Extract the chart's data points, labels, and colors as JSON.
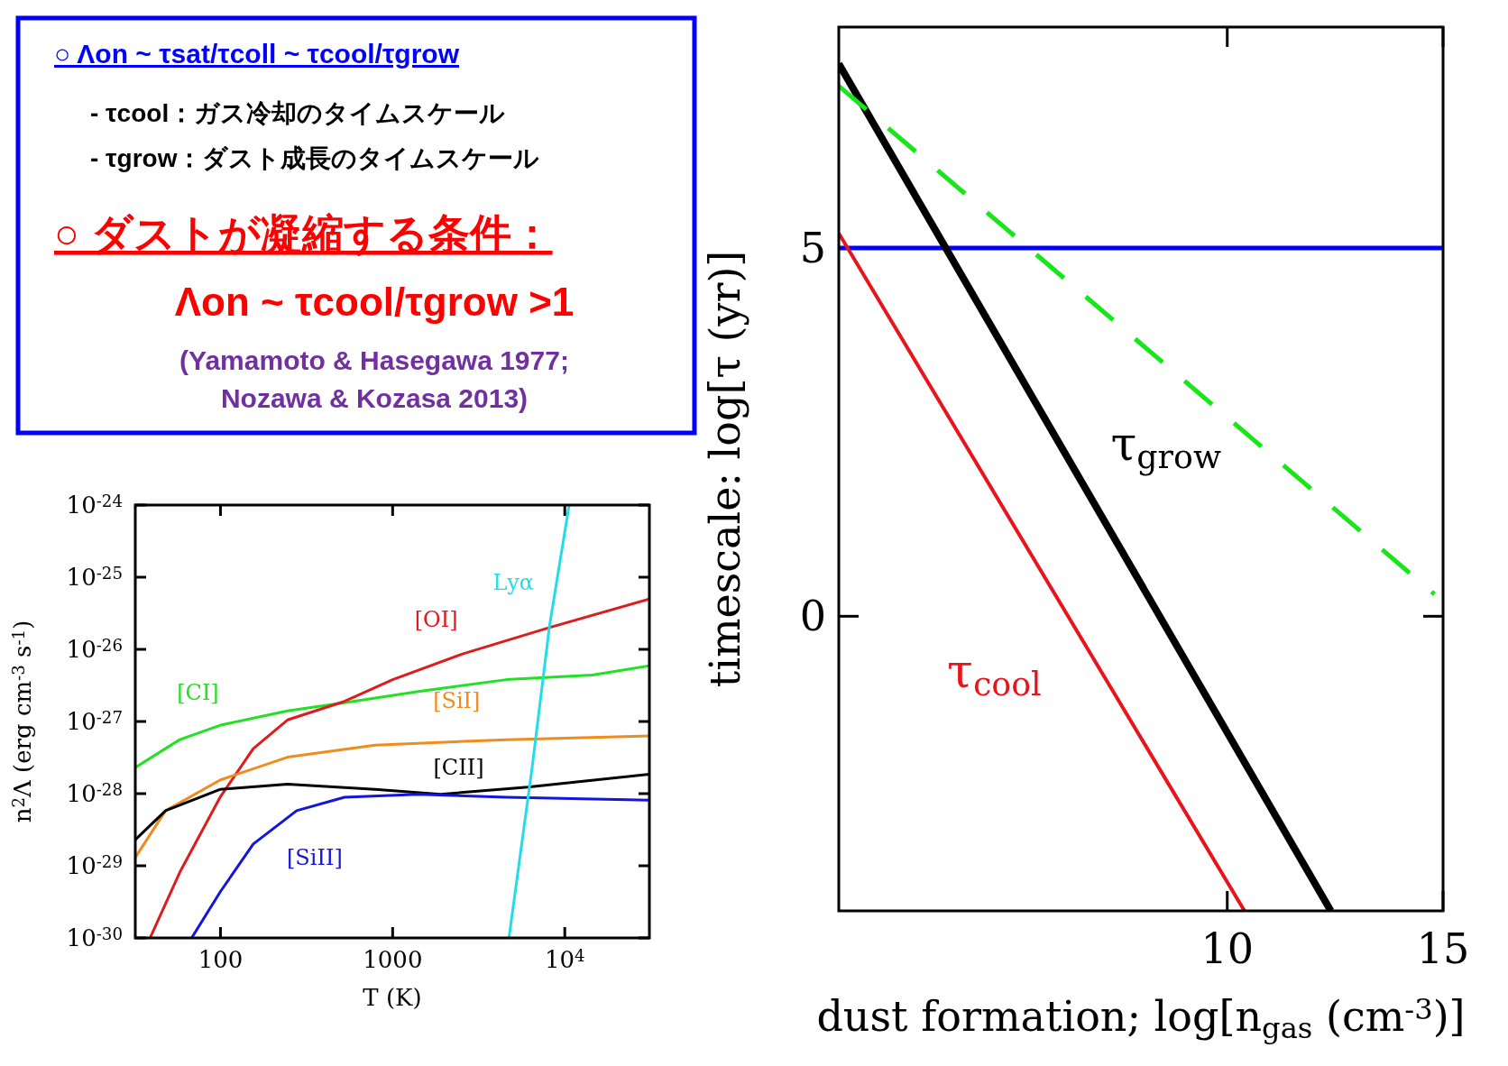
{
  "chart_data": [
    {
      "type": "line",
      "xlabel": "dust formation; log[n$_{gas}$ (cm$^{-3}$)]",
      "ylabel": "timescale: log[τ (yr)]",
      "xlim": [
        1,
        15
      ],
      "ylim": [
        -4,
        8
      ],
      "xticks": [
        10,
        15
      ],
      "yticks": [
        0,
        5
      ],
      "ref_lines": [
        {
          "axis": "y",
          "value": 5,
          "color": "#0000ff"
        }
      ],
      "series": [
        {
          "name": "τ$_{cool}$",
          "color": "#e8141c",
          "x": [
            1,
            10.4
          ],
          "values": [
            5.2,
            -4
          ]
        },
        {
          "name": "τ$_{grow}$",
          "color": "#000000",
          "x": [
            1,
            12.4
          ],
          "values": [
            7.5,
            -4
          ]
        },
        {
          "color": "#19e619",
          "line_style": "dashed",
          "x": [
            1,
            14.8
          ],
          "values": [
            7.2,
            0.3
          ]
        }
      ]
    },
    {
      "type": "other",
      "annotations": [
        "○ Λon ~ τsat/τcoll ~ τcool/τgrow",
        "- τcool：ガス冷却のタイムスケール",
        "- τgrow：ダスト成長のタイムスケール",
        "○ ダストが凝縮する条件：",
        "Λon ~ τcool/τgrow >1",
        "(Yamamoto & Hasegawa 1977;",
        "Nozawa & Kozasa 2013)"
      ]
    },
    {
      "type": "line",
      "xlabel": "T (K)",
      "ylabel": "n$^{2}$Λ (erg cm$^{-3}$ s$^{-1}$)",
      "log": "xy",
      "xlim": [
        32,
        31000
      ],
      "ylim": [
        1e-30,
        1e-24
      ],
      "xticks": [
        100,
        1000,
        {
          "value": 10000,
          "label": "10$^{4}$"
        }
      ],
      "yticks": [
        {
          "value": 1e-30,
          "label": "10$^{-30}$"
        },
        {
          "value": 1e-29,
          "label": "10$^{-29}$"
        },
        {
          "value": 1e-28,
          "label": "10$^{-28}$"
        },
        {
          "value": 1e-27,
          "label": "10$^{-27}$"
        },
        {
          "value": 1e-26,
          "label": "10$^{-26}$"
        },
        {
          "value": 1e-25,
          "label": "10$^{-25}$"
        },
        {
          "value": 1e-24,
          "label": "10$^{-24}$"
        }
      ],
      "series": [
        {
          "name": "[CI]",
          "color": "#22e022",
          "x": [
            32,
            58,
            100,
            245,
            590,
            1410,
            4570,
            14450,
            31000
          ],
          "values": [
            2.3e-28,
            5.6e-28,
            8.9e-28,
            1.4e-27,
            1.9e-27,
            2.6e-27,
            3.8e-27,
            4.4e-27,
            5.9e-27
          ]
        },
        {
          "name": "[OI]",
          "color": "#dd1c1c",
          "x": [
            39,
            58,
            100,
            155,
            245,
            525,
            1000,
            2570,
            8130,
            31000
          ],
          "values": [
            1e-30,
            8.1e-30,
            9.1e-29,
            4.2e-28,
            1.05e-27,
            1.9e-27,
            3.8e-27,
            8.7e-27,
            2e-26,
            5e-26
          ]
        },
        {
          "name": "[SiI]",
          "color": "#f08c1e",
          "x": [
            32,
            48,
            100,
            245,
            790,
            4570,
            31000
          ],
          "values": [
            1.3e-29,
            5.8e-29,
            1.55e-28,
            3.2e-28,
            4.7e-28,
            5.6e-28,
            6.3e-28
          ]
        },
        {
          "name": "[CII]",
          "color": "#000000",
          "x": [
            32,
            48,
            100,
            245,
            790,
            1900,
            6100,
            31000
          ],
          "values": [
            2.3e-29,
            5.8e-29,
            1.15e-28,
            1.35e-28,
            1.15e-28,
            9.8e-29,
            1.23e-28,
            1.86e-28
          ]
        },
        {
          "name": "[SiII]",
          "color": "#1414dc",
          "x": [
            68,
            100,
            155,
            277,
            525,
            1410,
            4570,
            31000
          ],
          "values": [
            1e-30,
            4.4e-30,
            2e-29,
            5.8e-29,
            8.9e-29,
            9.8e-29,
            8.9e-29,
            8.1e-29
          ]
        },
        {
          "name": "Lyα",
          "color": "#22dde8",
          "x": [
            4740,
            6460,
            8150,
            10600
          ],
          "values": [
            1e-30,
            2.3e-28,
            2.1e-26,
            1e-24
          ]
        }
      ]
    }
  ]
}
